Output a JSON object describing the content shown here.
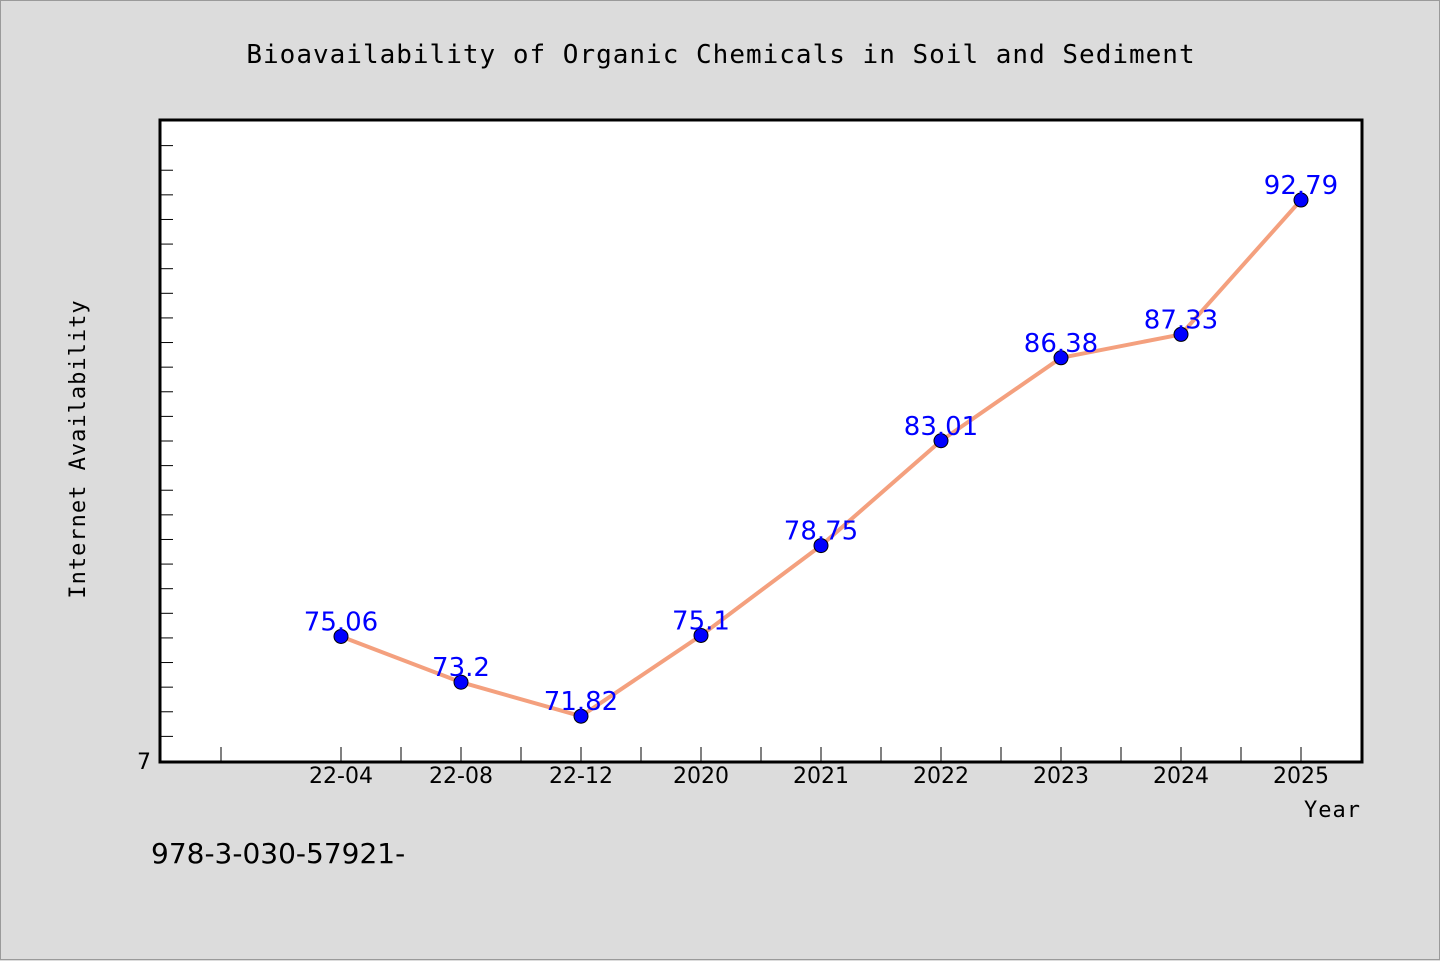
{
  "chart_data": {
    "type": "line",
    "title": "Bioavailability of Organic Chemicals in Soil and Sediment",
    "xlabel": "Year",
    "ylabel": "Internet Availability",
    "categories": [
      "22-04",
      "22-08",
      "22-12",
      "2020",
      "2021",
      "2022",
      "2023",
      "2024",
      "2025"
    ],
    "values": [
      75.06,
      73.2,
      71.82,
      75.1,
      78.75,
      83.01,
      86.38,
      87.33,
      92.79
    ],
    "data_labels": [
      "75.06",
      "73.2",
      "71.82",
      "75.1",
      "78.75",
      "83.01",
      "86.38",
      "87.33",
      "92.79"
    ],
    "y_tick_label": "7",
    "ylim": [
      70,
      96
    ],
    "line_color": "#f4a07e",
    "marker_color": "#0000ff",
    "label_color": "#0000ff",
    "background": "#dcdcdc",
    "plot_background": "#ffffff",
    "grid": false
  },
  "footer": {
    "isbn": "978-3-030-57921-"
  }
}
